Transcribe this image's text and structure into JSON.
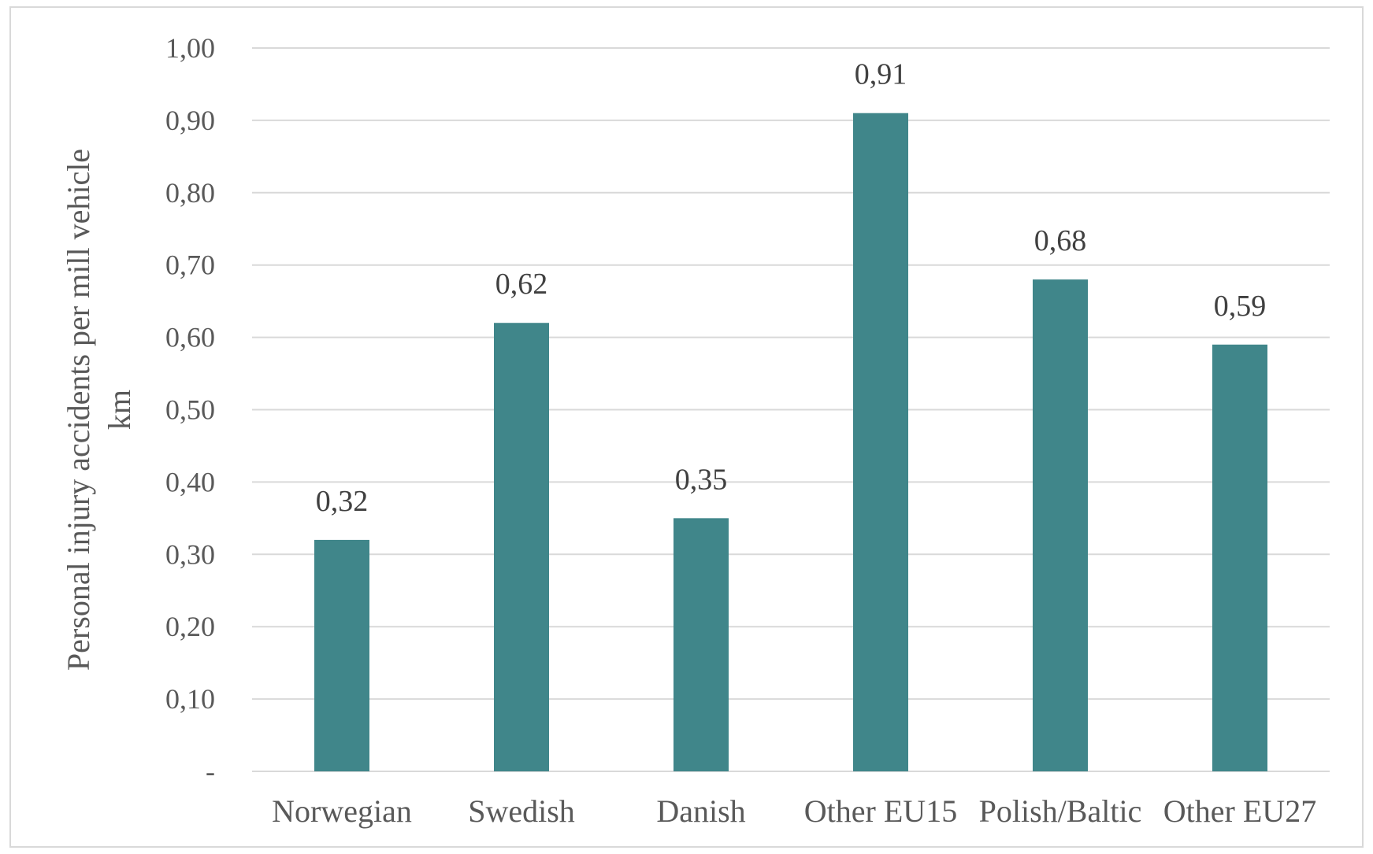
{
  "chart_data": {
    "type": "bar",
    "title": "",
    "xlabel": "",
    "ylabel": "Personal injury accidents per mill vehicle km",
    "ylabel_lines": [
      "Personal injury accidents per mill vehicle",
      "km"
    ],
    "categories": [
      "Norwegian",
      "Swedish",
      "Danish",
      "Other EU15",
      "Polish/Baltic",
      "Other EU27"
    ],
    "values": [
      0.32,
      0.62,
      0.35,
      0.91,
      0.68,
      0.59
    ],
    "data_labels": [
      "0,32",
      "0,62",
      "0,35",
      "0,91",
      "0,68",
      "0,59"
    ],
    "ylim": [
      0,
      1.0
    ],
    "yticks": [
      0,
      0.1,
      0.2,
      0.3,
      0.4,
      0.5,
      0.6,
      0.7,
      0.8,
      0.9,
      1.0
    ],
    "ytick_labels": [
      "-",
      "0,10",
      "0,20",
      "0,30",
      "0,40",
      "0,50",
      "0,60",
      "0,70",
      "0,80",
      "0,90",
      "1,00"
    ],
    "grid": true,
    "legend": "none",
    "colors": {
      "bar": "#40868a",
      "grid": "#d9d9d9",
      "text": "#595959"
    }
  }
}
